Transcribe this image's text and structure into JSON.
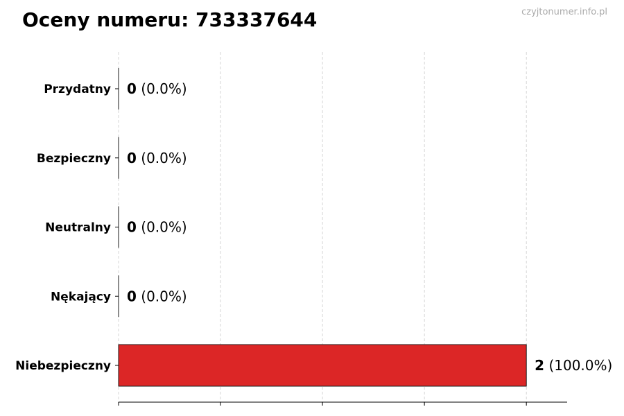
{
  "watermark": "czyjtonumer.info.pl",
  "chart_data": {
    "type": "bar",
    "orientation": "horizontal",
    "title": "Oceny numeru: 733337644",
    "xlabel": "",
    "ylabel": "",
    "categories": [
      "Przydatny",
      "Bezpieczny",
      "Neutralny",
      "Nękający",
      "Niebezpieczny"
    ],
    "values": [
      0,
      0,
      0,
      0,
      2
    ],
    "data_labels": [
      {
        "count": "0",
        "pct": "(0.0%)"
      },
      {
        "count": "0",
        "pct": "(0.0%)"
      },
      {
        "count": "0",
        "pct": "(0.0%)"
      },
      {
        "count": "0",
        "pct": "(0.0%)"
      },
      {
        "count": "2",
        "pct": "(100.0%)"
      }
    ],
    "xlim": [
      0,
      2.2
    ],
    "xticks": [
      0,
      0.5,
      1,
      1.5,
      2
    ],
    "xtick_labels_shown": false,
    "grid": "x, dashed",
    "bar_color": "#dc2626",
    "edge_color": "#1a1a1a"
  }
}
